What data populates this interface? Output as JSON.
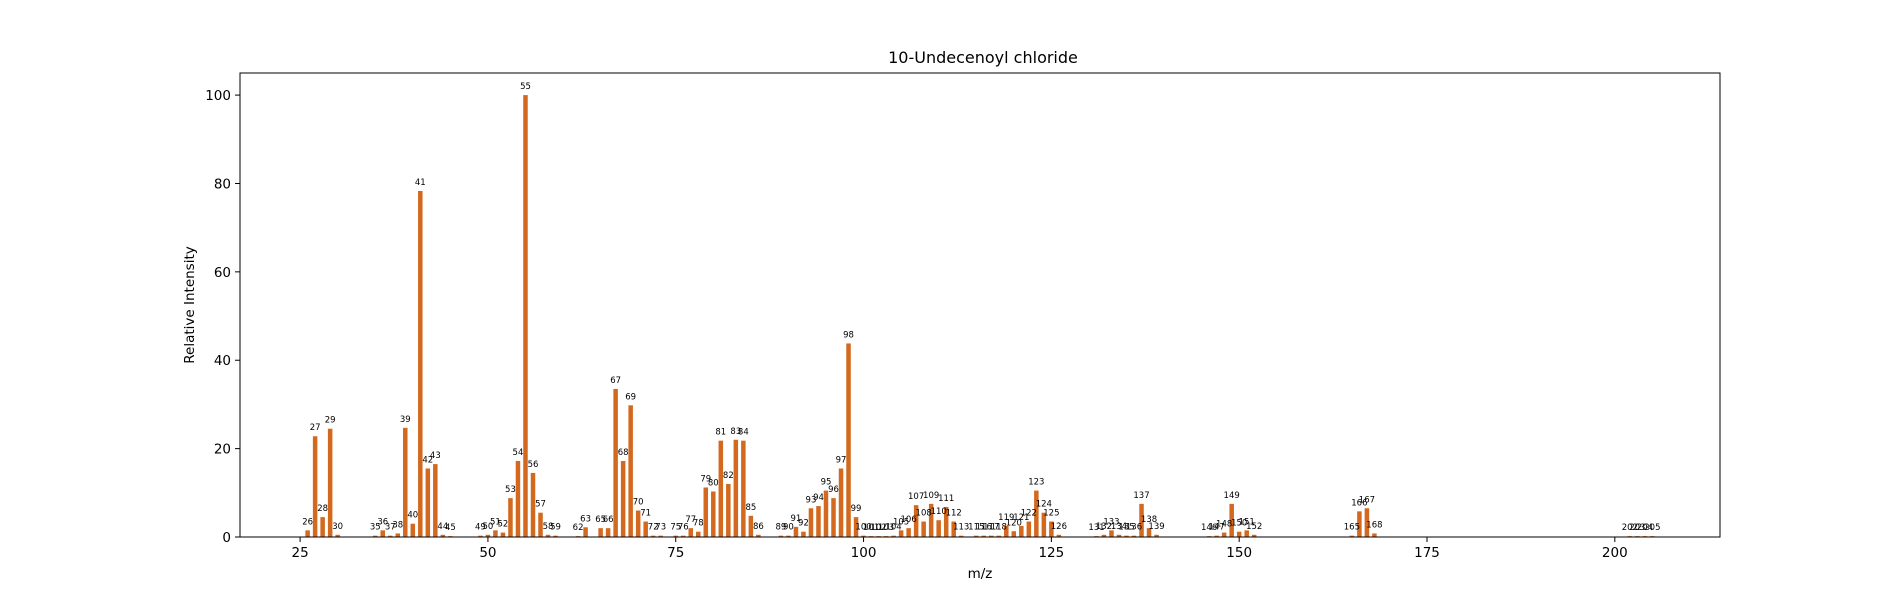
{
  "chart_data": {
    "type": "bar",
    "title": "10-Undecenoyl chloride",
    "xlabel": "m/z",
    "ylabel": "Relative Intensity",
    "xlim": [
      17,
      214
    ],
    "ylim": [
      0,
      105
    ],
    "xticks": [
      25,
      50,
      75,
      100,
      125,
      150,
      175,
      200
    ],
    "yticks": [
      0,
      20,
      40,
      60,
      80,
      100
    ],
    "grid": false,
    "bar_color": "#d2691e",
    "x": [
      26,
      27,
      28,
      29,
      30,
      35,
      36,
      37,
      38,
      39,
      40,
      41,
      42,
      43,
      44,
      45,
      49,
      50,
      51,
      52,
      53,
      54,
      55,
      56,
      57,
      58,
      59,
      62,
      63,
      65,
      66,
      67,
      68,
      69,
      70,
      71,
      72,
      73,
      75,
      76,
      77,
      78,
      79,
      80,
      81,
      82,
      83,
      84,
      85,
      86,
      89,
      90,
      91,
      92,
      93,
      94,
      95,
      96,
      97,
      98,
      99,
      100,
      101,
      102,
      103,
      104,
      105,
      106,
      107,
      108,
      109,
      110,
      111,
      112,
      113,
      115,
      116,
      117,
      118,
      119,
      120,
      121,
      122,
      123,
      124,
      125,
      126,
      131,
      132,
      133,
      134,
      135,
      136,
      137,
      138,
      139,
      146,
      147,
      148,
      149,
      150,
      151,
      152,
      165,
      166,
      167,
      168,
      202,
      203,
      204,
      205
    ],
    "values": [
      1.5,
      22.8,
      4.5,
      24.5,
      0.5,
      0.3,
      1.5,
      0.3,
      0.8,
      24.7,
      3.0,
      78.3,
      15.5,
      16.5,
      0.5,
      0.2,
      0.3,
      0.5,
      1.5,
      1.0,
      8.8,
      17.2,
      100,
      14.5,
      5.5,
      0.5,
      0.3,
      0.2,
      2.2,
      2.0,
      2.0,
      33.5,
      17.2,
      29.8,
      6.0,
      3.5,
      0.3,
      0.3,
      0.3,
      0.3,
      2.0,
      1.2,
      11.2,
      10.3,
      21.8,
      12.0,
      22.0,
      21.8,
      4.8,
      0.5,
      0.3,
      0.3,
      2.3,
      1.2,
      6.5,
      7.0,
      10.5,
      8.8,
      15.5,
      43.8,
      4.5,
      0.3,
      0.2,
      0.2,
      0.2,
      0.3,
      1.5,
      2.0,
      7.2,
      3.5,
      7.5,
      3.8,
      6.8,
      3.5,
      0.3,
      0.3,
      0.3,
      0.3,
      0.3,
      2.5,
      1.3,
      2.5,
      3.5,
      10.5,
      5.5,
      3.5,
      0.5,
      0.2,
      0.5,
      1.5,
      0.5,
      0.3,
      0.3,
      7.5,
      2.0,
      0.5,
      0.2,
      0.3,
      1.0,
      7.5,
      1.2,
      1.5,
      0.5,
      0.3,
      5.8,
      6.5,
      0.8,
      0.2,
      0.2,
      0.2,
      0.2
    ],
    "labels": [
      "26",
      "27",
      "28",
      "29",
      "30",
      "35",
      "36",
      "37",
      "38",
      "39",
      "40",
      "41",
      "42",
      "43",
      "44",
      "45",
      "49",
      "50",
      "51",
      "52",
      "53",
      "54",
      "55",
      "56",
      "57",
      "58",
      "59",
      "62",
      "63",
      "65",
      "66",
      "67",
      "68",
      "69",
      "70",
      "71",
      "72",
      "73",
      "75",
      "76",
      "77",
      "78",
      "79",
      "80",
      "81",
      "82",
      "83",
      "84",
      "85",
      "86",
      "89",
      "90",
      "91",
      "92",
      "93",
      "94",
      "95",
      "96",
      "97",
      "98",
      "99",
      "100",
      "101",
      "102",
      "103",
      "104",
      "105",
      "106",
      "107",
      "108",
      "109",
      "110",
      "111",
      "112",
      "113",
      "115",
      "116",
      "117",
      "118",
      "119",
      "120",
      "121",
      "122",
      "123",
      "124",
      "125",
      "126",
      "131",
      "132",
      "133",
      "134",
      "135",
      "136",
      "137",
      "138",
      "139",
      "146",
      "147",
      "148",
      "149",
      "150",
      "151",
      "152",
      "165",
      "166",
      "167",
      "168",
      "202",
      "203",
      "204",
      "205"
    ]
  }
}
